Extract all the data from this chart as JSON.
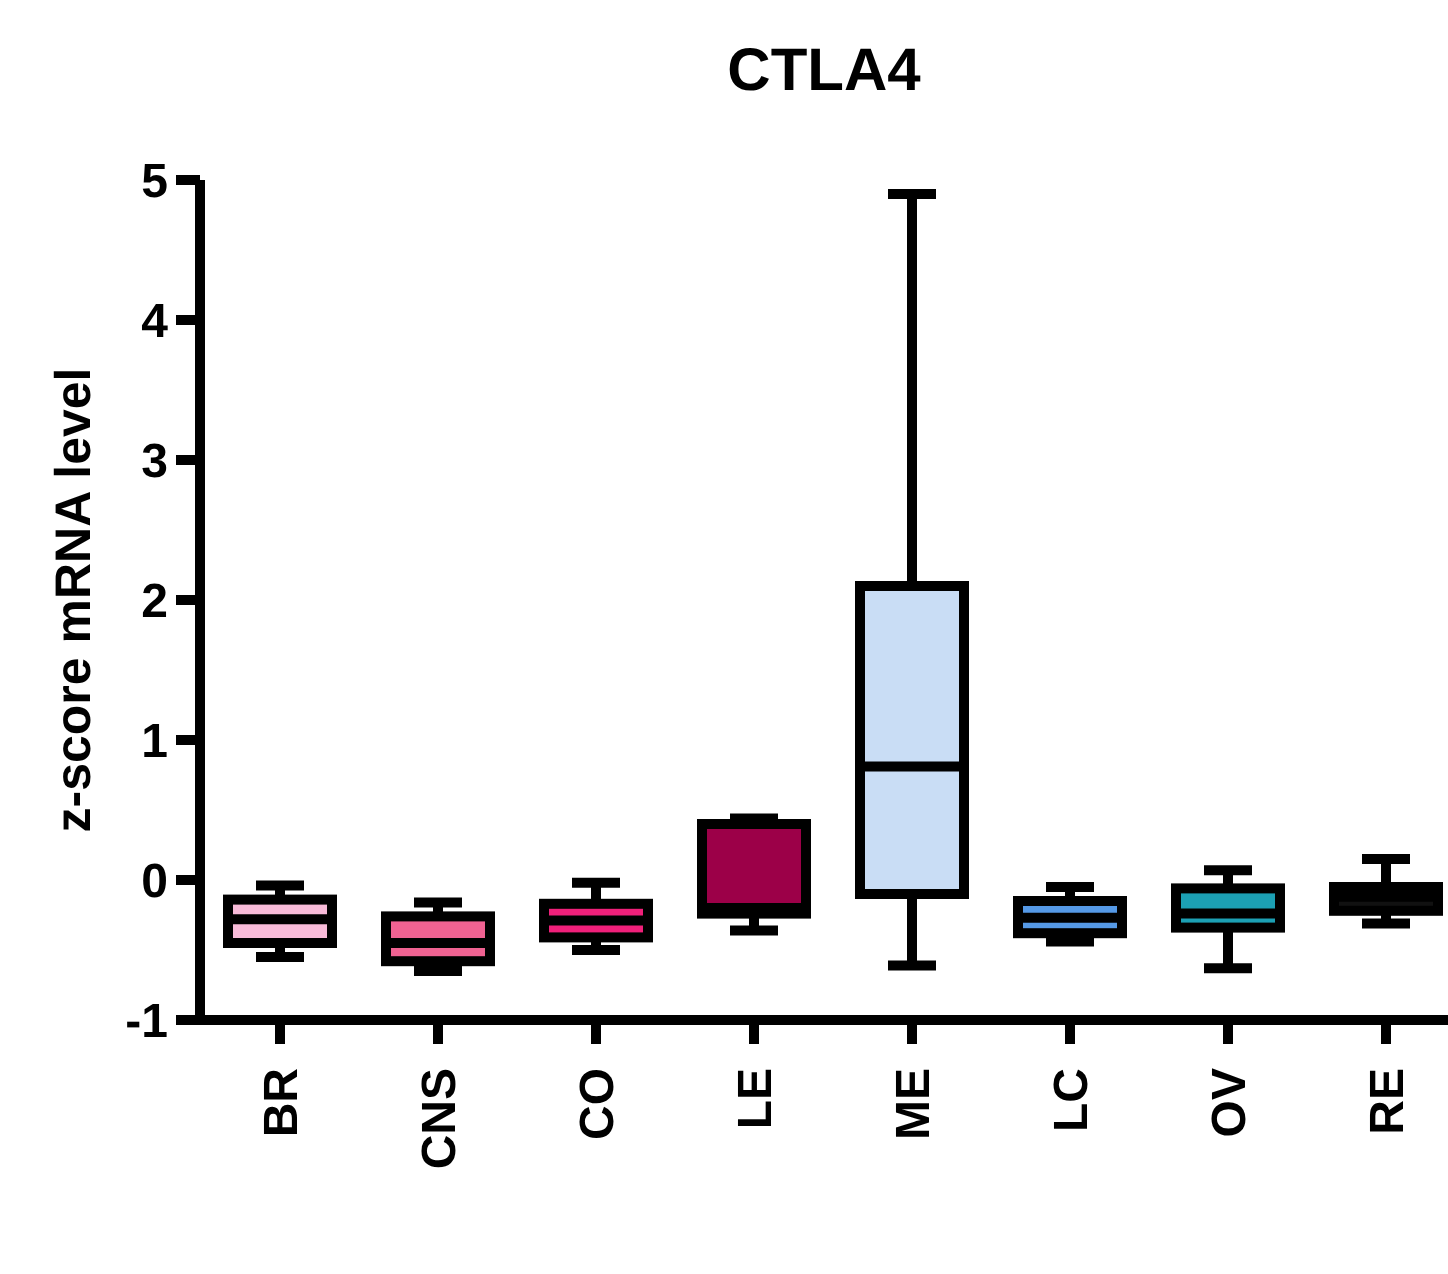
{
  "chart_data": {
    "type": "box",
    "title": "CTLA4",
    "ylabel": "z-score mRNA level",
    "categories": [
      "BR",
      "CNS",
      "CO",
      "LE",
      "ME",
      "LC",
      "OV",
      "RE"
    ],
    "colors": [
      "#f8bbd9",
      "#f06292",
      "#f0207a",
      "#9c0048",
      "#c9ddf5",
      "#5599e6",
      "#1ca0b4",
      "#111111"
    ],
    "boxes": [
      {
        "low": -0.55,
        "q1": -0.45,
        "median": -0.28,
        "q3": -0.14,
        "high": -0.04
      },
      {
        "low": -0.65,
        "q1": -0.58,
        "median": -0.45,
        "q3": -0.26,
        "high": -0.16
      },
      {
        "low": -0.5,
        "q1": -0.41,
        "median": -0.29,
        "q3": -0.17,
        "high": -0.02
      },
      {
        "low": -0.36,
        "q1": -0.24,
        "median": -0.2,
        "q3": 0.4,
        "high": 0.44
      },
      {
        "low": -0.61,
        "q1": -0.1,
        "median": 0.81,
        "q3": 2.1,
        "high": 4.9
      },
      {
        "low": -0.44,
        "q1": -0.38,
        "median": -0.27,
        "q3": -0.15,
        "high": -0.05
      },
      {
        "low": -0.63,
        "q1": -0.34,
        "median": -0.24,
        "q3": -0.06,
        "high": 0.07
      },
      {
        "low": -0.31,
        "q1": -0.22,
        "median": -0.12,
        "q3": -0.05,
        "high": 0.15
      }
    ],
    "ylim": [
      -1,
      5
    ],
    "yticks": [
      -1,
      0,
      1,
      2,
      3,
      4,
      5
    ],
    "grid": false
  }
}
